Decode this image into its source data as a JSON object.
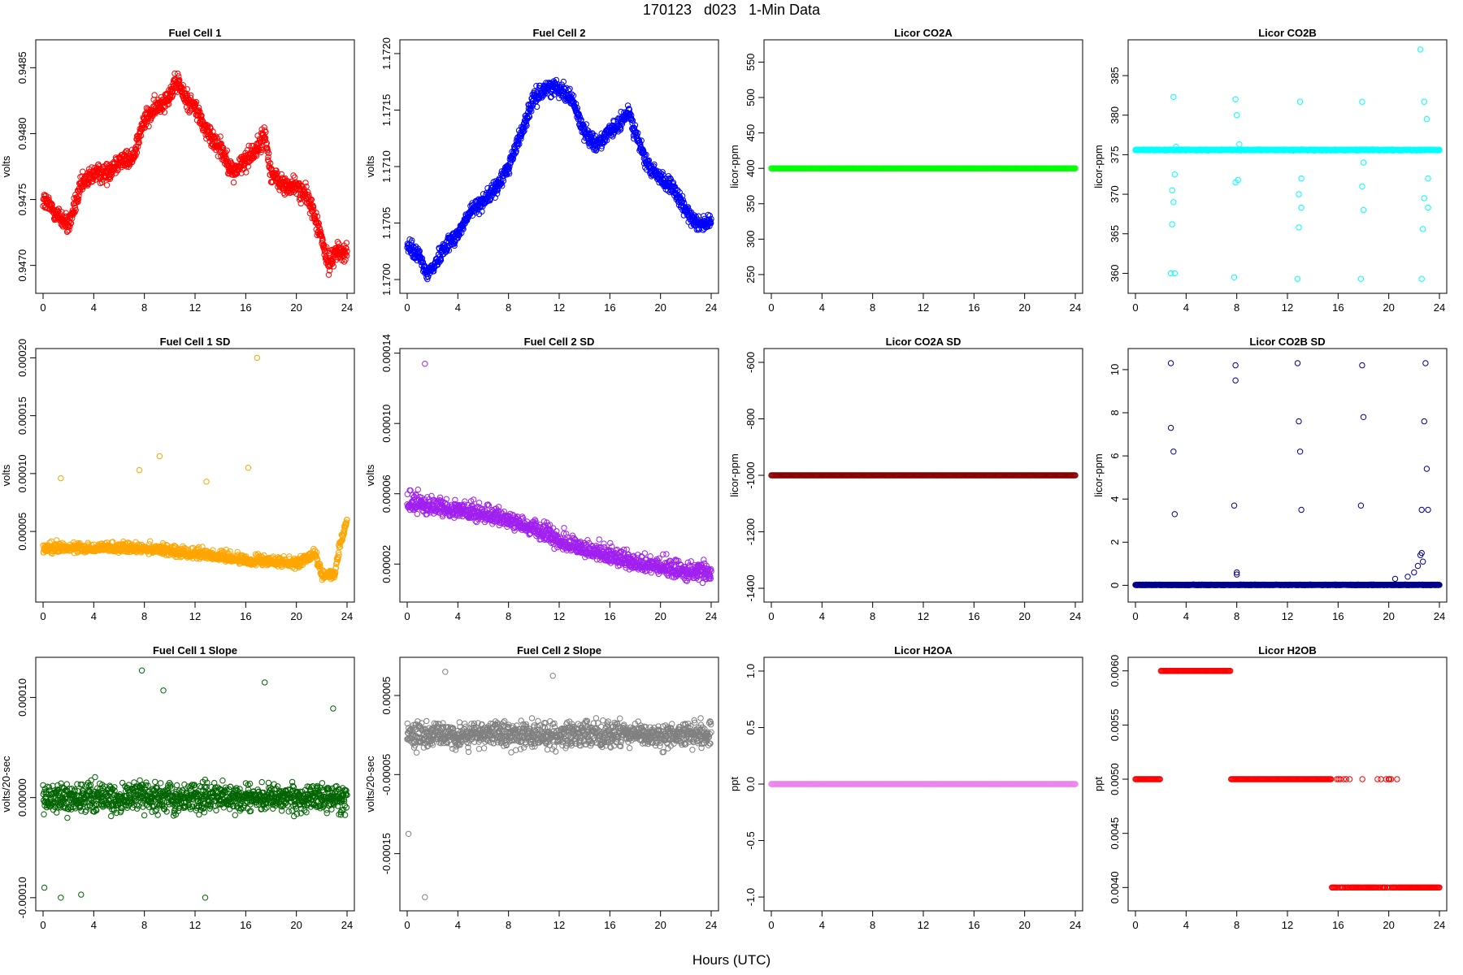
{
  "title": "170123   d023   1-Min Data",
  "xlabel": "Hours (UTC)",
  "chart_data": [
    {
      "panel": "fc1",
      "type": "scatter",
      "title": "Fuel Cell 1",
      "ylabel": "volts",
      "color": "#ff0000",
      "xlim": [
        0,
        24
      ],
      "ylim": [
        0.94685,
        0.94865
      ],
      "yticks": [
        {
          "v": 0.947,
          "label": "0.9470"
        },
        {
          "v": 0.9475,
          "label": "0.9475"
        },
        {
          "v": 0.948,
          "label": "0.9480"
        },
        {
          "v": 0.9485,
          "label": "0.9485"
        }
      ],
      "series": [
        {
          "x": [
            0,
            1,
            2,
            3,
            4,
            5,
            6,
            7,
            8,
            9,
            10,
            10.7,
            11,
            12,
            13,
            14,
            15,
            16,
            17,
            17.5,
            18,
            19,
            20,
            21,
            22,
            22.5,
            23,
            24
          ],
          "values": [
            0.9475,
            0.9474,
            0.9473,
            0.9476,
            0.9477,
            0.9477,
            0.9478,
            0.9478,
            0.9481,
            0.9482,
            0.9483,
            0.9484,
            0.9483,
            0.9482,
            0.948,
            0.9479,
            0.9477,
            0.9478,
            0.9479,
            0.948,
            0.9477,
            0.9476,
            0.9476,
            0.9475,
            0.9472,
            0.947,
            0.9471,
            0.9471
          ]
        }
      ]
    },
    {
      "panel": "fc2",
      "type": "scatter",
      "title": "Fuel Cell 2",
      "ylabel": "volts",
      "color": "#0000ff",
      "xlim": [
        0,
        24
      ],
      "ylim": [
        1.16995,
        1.17205
      ],
      "yticks": [
        {
          "v": 1.17,
          "label": "1.1700"
        },
        {
          "v": 1.1705,
          "label": "1.1705"
        },
        {
          "v": 1.171,
          "label": "1.1710"
        },
        {
          "v": 1.1715,
          "label": "1.1715"
        },
        {
          "v": 1.172,
          "label": "1.1720"
        }
      ],
      "series": [
        {
          "x": [
            0,
            1,
            1.5,
            2,
            3,
            4,
            5,
            6,
            7,
            8,
            9,
            10,
            11,
            12,
            13,
            14,
            15,
            16,
            17,
            17.5,
            18,
            19,
            20,
            21,
            22,
            23,
            24
          ],
          "values": [
            1.1703,
            1.1702,
            1.17005,
            1.1701,
            1.1703,
            1.1704,
            1.1706,
            1.1707,
            1.1708,
            1.171,
            1.1713,
            1.1716,
            1.1717,
            1.1717,
            1.1716,
            1.1713,
            1.1712,
            1.1713,
            1.1714,
            1.1715,
            1.1713,
            1.171,
            1.1709,
            1.1708,
            1.1706,
            1.1705,
            1.1705
          ]
        }
      ]
    },
    {
      "panel": "co2a",
      "type": "scatter",
      "title": "Licor CO2A",
      "ylabel": "licor-ppm",
      "color": "#00ff00",
      "xlim": [
        0,
        24
      ],
      "ylim": [
        235,
        570
      ],
      "yticks": [
        {
          "v": 250,
          "label": "250"
        },
        {
          "v": 300,
          "label": "300"
        },
        {
          "v": 350,
          "label": "350"
        },
        {
          "v": 400,
          "label": "400"
        },
        {
          "v": 450,
          "label": "450"
        },
        {
          "v": 500,
          "label": "500"
        },
        {
          "v": 550,
          "label": "550"
        }
      ],
      "series": [
        {
          "x": [
            0,
            24
          ],
          "values": [
            400,
            400
          ]
        }
      ]
    },
    {
      "panel": "co2b",
      "type": "scatter",
      "title": "Licor CO2B",
      "ylabel": "licor-ppm",
      "color": "#00ffff",
      "xlim": [
        0,
        24
      ],
      "ylim": [
        358.5,
        388.5
      ],
      "yticks": [
        {
          "v": 360,
          "label": "360"
        },
        {
          "v": 365,
          "label": "365"
        },
        {
          "v": 370,
          "label": "370"
        },
        {
          "v": 375,
          "label": "375"
        },
        {
          "v": 380,
          "label": "380"
        },
        {
          "v": 385,
          "label": "385"
        }
      ],
      "series": [
        {
          "x": [
            0,
            24
          ],
          "values": [
            375.6,
            375.6
          ]
        }
      ],
      "extra_x": [
        2.8,
        2.9,
        2.9,
        3.0,
        3.0,
        3.1,
        3.1,
        3.2,
        7.8,
        7.9,
        7.9,
        8.0,
        8.1,
        8.2,
        12.8,
        12.9,
        12.9,
        13.0,
        13.1,
        13.1,
        17.8,
        17.9,
        17.9,
        18.0,
        18.0,
        22.5,
        22.6,
        22.7,
        22.8,
        22.8,
        23.0,
        23.1,
        23.1
      ],
      "extra_y": [
        360,
        366.2,
        370.5,
        382.3,
        369,
        360,
        372.5,
        376,
        359.5,
        371.5,
        382,
        380,
        371.8,
        376.3,
        359.3,
        365.8,
        370,
        381.7,
        368.3,
        372,
        359.3,
        371,
        381.7,
        368,
        374,
        388.3,
        359.3,
        365.6,
        369.5,
        381.7,
        379.5,
        368.3,
        372
      ]
    },
    {
      "panel": "fc1sd",
      "type": "scatter",
      "title": "Fuel Cell 1 SD",
      "ylabel": "volts",
      "color": "#ffa500",
      "xlim": [
        0,
        24
      ],
      "ylim": [
        -4e-06,
        0.000201
      ],
      "yticks": [
        {
          "v": 5e-05,
          "label": "0.00005"
        },
        {
          "v": 0.0001,
          "label": "0.00010"
        },
        {
          "v": 0.00015,
          "label": "0.00015"
        },
        {
          "v": 0.0002,
          "label": "0.00020"
        }
      ],
      "series": [
        {
          "x": [
            0,
            4,
            8,
            12,
            16,
            20,
            21.5,
            22,
            23,
            23.5,
            24
          ],
          "values": [
            3.5e-05,
            3.5e-05,
            3.5e-05,
            3e-05,
            2.5e-05,
            2.2e-05,
            3e-05,
            1.2e-05,
            1.2e-05,
            4e-05,
            6e-05
          ]
        }
      ],
      "extra_x": [
        16.9,
        9.2,
        16.2,
        12.9,
        1.4,
        7.6
      ],
      "extra_y": [
        0.0002,
        0.000115,
        0.000105,
        9.3e-05,
        9.6e-05,
        0.000103
      ]
    },
    {
      "panel": "fc2sd",
      "type": "scatter",
      "title": "Fuel Cell 2 SD",
      "ylabel": "volts",
      "color": "#a020f0",
      "xlim": [
        0,
        24
      ],
      "ylim": [
        3e-06,
        0.000138
      ],
      "yticks": [
        {
          "v": 2e-05,
          "label": "0.00002"
        },
        {
          "v": 6e-05,
          "label": "0.00006"
        },
        {
          "v": 0.0001,
          "label": "0.00010"
        },
        {
          "v": 0.00014,
          "label": "0.00014"
        }
      ],
      "series": [
        {
          "x": [
            0,
            2,
            4,
            6,
            8,
            10,
            12,
            14,
            16,
            18,
            20,
            22,
            24
          ],
          "values": [
            5.5e-05,
            5.2e-05,
            5e-05,
            4.8e-05,
            4.5e-05,
            4e-05,
            3.3e-05,
            2.8e-05,
            2.4e-05,
            2e-05,
            1.8e-05,
            1.6e-05,
            1.4e-05
          ]
        }
      ],
      "extra_x": [
        1.4
      ],
      "extra_y": [
        0.000134
      ]
    },
    {
      "panel": "co2asd",
      "type": "scatter",
      "title": "Licor CO2A SD",
      "ylabel": "licor-ppm",
      "color": "#8b0000",
      "xlim": [
        0,
        24
      ],
      "ylim": [
        -1420,
        -580
      ],
      "yticks": [
        {
          "v": -1400,
          "label": "-1400"
        },
        {
          "v": -1200,
          "label": "-1200"
        },
        {
          "v": -1000,
          "label": "-1000"
        },
        {
          "v": -800,
          "label": "-800"
        },
        {
          "v": -600,
          "label": "-600"
        }
      ],
      "series": [
        {
          "x": [
            0,
            24
          ],
          "values": [
            -1000,
            -1000
          ]
        }
      ]
    },
    {
      "panel": "co2bsd",
      "type": "scatter",
      "title": "Licor CO2B SD",
      "ylabel": "licor-ppm",
      "color": "#00008b",
      "xlim": [
        0,
        24
      ],
      "ylim": [
        -0.4,
        10.6
      ],
      "yticks": [
        {
          "v": 0,
          "label": "0"
        },
        {
          "v": 2,
          "label": "2"
        },
        {
          "v": 4,
          "label": "4"
        },
        {
          "v": 6,
          "label": "6"
        },
        {
          "v": 8,
          "label": "8"
        },
        {
          "v": 10,
          "label": "10"
        }
      ],
      "series": [
        {
          "x": [
            0,
            24
          ],
          "values": [
            0.02,
            0.02
          ]
        }
      ],
      "extra_x": [
        2.8,
        2.8,
        3.0,
        3.1,
        7.8,
        7.9,
        7.9,
        8.0,
        8.0,
        12.8,
        12.9,
        13.0,
        13.1,
        17.8,
        17.9,
        18.0,
        22.6,
        22.8,
        22.9,
        23.0,
        23.1,
        20.5,
        21.5,
        22.0,
        22.3,
        22.5,
        22.6,
        22.7
      ],
      "extra_y": [
        10.3,
        7.3,
        6.2,
        3.3,
        3.7,
        10.2,
        9.5,
        0.6,
        0.5,
        10.3,
        7.6,
        6.2,
        3.5,
        3.7,
        10.2,
        7.8,
        3.5,
        7.6,
        10.3,
        5.4,
        3.5,
        0.3,
        0.4,
        0.6,
        0.9,
        1.4,
        1.5,
        1.1
      ]
    },
    {
      "panel": "fc1slope",
      "type": "scatter",
      "title": "Fuel Cell 1 Slope",
      "ylabel": "volts/20-sec",
      "color": "#006400",
      "xlim": [
        0,
        24
      ],
      "ylim": [
        -0.000105,
        0.000132
      ],
      "yticks": [
        {
          "v": -0.0001,
          "label": "-0.00010"
        },
        {
          "v": 0,
          "label": "0.00000"
        },
        {
          "v": 0.0001,
          "label": "0.00010"
        }
      ],
      "series": [
        {
          "x": [
            0,
            24
          ],
          "values": [
            0,
            0
          ]
        }
      ],
      "extra_x": [
        7.8,
        17.5,
        9.5,
        22.9,
        0.1,
        1.4,
        3.0,
        12.8
      ],
      "extra_y": [
        0.000127,
        0.000115,
        0.000107,
        8.9e-05,
        -9e-05,
        -0.0001,
        -9.7e-05,
        -0.0001
      ]
    },
    {
      "panel": "fc2slope",
      "type": "scatter",
      "title": "Fuel Cell 2 Slope",
      "ylabel": "volts/20-sec",
      "color": "#808080",
      "xlim": [
        0,
        24
      ],
      "ylim": [
        -0.000212,
        8.8e-05
      ],
      "yticks": [
        {
          "v": -0.00015,
          "label": "-0.00015"
        },
        {
          "v": -5e-05,
          "label": "-0.00005"
        },
        {
          "v": 5e-05,
          "label": "0.00005"
        }
      ],
      "series": [
        {
          "x": [
            0,
            24
          ],
          "values": [
            0,
            0
          ]
        }
      ],
      "extra_x": [
        1.4,
        3.0,
        0.1,
        11.5
      ],
      "extra_y": [
        -0.000205,
        8e-05,
        -0.000125,
        7.5e-05
      ]
    },
    {
      "panel": "h2oa",
      "type": "scatter",
      "title": "Licor H2OA",
      "ylabel": "ppt",
      "color": "#ee82ee",
      "xlim": [
        0,
        24
      ],
      "ylim": [
        -1.05,
        1.05
      ],
      "yticks": [
        {
          "v": -1,
          "label": "-1.0"
        },
        {
          "v": -0.5,
          "label": "-0.5"
        },
        {
          "v": 0,
          "label": "0.0"
        },
        {
          "v": 0.5,
          "label": "0.5"
        },
        {
          "v": 1,
          "label": "1.0"
        }
      ],
      "series": [
        {
          "x": [
            0,
            24
          ],
          "values": [
            0,
            0
          ]
        }
      ]
    },
    {
      "panel": "h2ob",
      "type": "scatter",
      "title": "Licor H2OB",
      "ylabel": "ppt",
      "color": "#ff0000",
      "xlim": [
        0,
        24
      ],
      "ylim": [
        0.00386,
        0.00605
      ],
      "yticks": [
        {
          "v": 0.004,
          "label": "0.0040"
        },
        {
          "v": 0.0045,
          "label": "0.0045"
        },
        {
          "v": 0.005,
          "label": "0.0050"
        },
        {
          "v": 0.0055,
          "label": "0.0055"
        },
        {
          "v": 0.006,
          "label": "0.0060"
        }
      ],
      "series": [
        {
          "x": [
            0,
            2,
            2,
            7.5,
            7.5,
            15.5,
            15.5,
            24
          ],
          "values": [
            0.005,
            0.005,
            0.006,
            0.006,
            0.005,
            0.005,
            0.004,
            0.004
          ]
        }
      ]
    }
  ]
}
